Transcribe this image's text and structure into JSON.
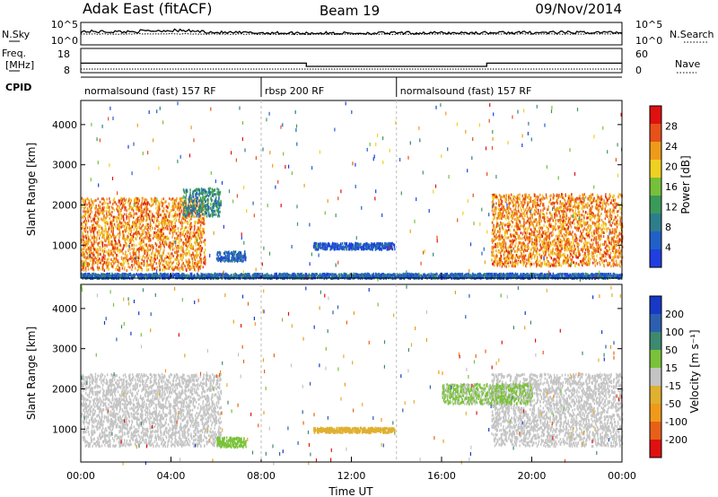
{
  "header": {
    "title": "Adak East (fitACF)",
    "beam": "Beam 19",
    "date": "09/Nov/2014"
  },
  "left_labels": {
    "nsky": "N.Sky",
    "freq_line1": "Freq.",
    "freq_line2": "[MHz]",
    "cpid": "CPID"
  },
  "right_labels": {
    "nsearch": "N.Search",
    "nave": "Nave"
  },
  "noise_axis": {
    "top": "10^5",
    "bottom": "10^0"
  },
  "freq_axis": {
    "ticks": [
      "18",
      "8"
    ]
  },
  "nave_axis": {
    "ticks": [
      "60",
      "0"
    ]
  },
  "cpid_segments": [
    {
      "label": "normalsound (fast) 157 RF",
      "start_hr": 0,
      "end_hr": 8
    },
    {
      "label": "rbsp 200 RF",
      "start_hr": 8,
      "end_hr": 14
    },
    {
      "label": "normalsound (fast) 157 RF",
      "start_hr": 14,
      "end_hr": 24
    }
  ],
  "colors": {
    "power_scale": [
      "#1f3fe0",
      "#2060c8",
      "#2e7d8c",
      "#3a9a5a",
      "#77c03a",
      "#f0d020",
      "#f09a1a",
      "#e8501a",
      "#e01010"
    ],
    "velocity_scale": [
      "#1838c8",
      "#2d5fb0",
      "#3c8a70",
      "#7ac23a",
      "#c4c4c4",
      "#e0b030",
      "#f09a1a",
      "#e86018",
      "#e01010"
    ]
  },
  "chart_data": [
    {
      "type": "line",
      "panel": "noise",
      "x": [
        0,
        2,
        4,
        6,
        8,
        10,
        12,
        14,
        16,
        18,
        20,
        22,
        24
      ],
      "series": [
        {
          "name": "N.Sky",
          "values": [
            3000,
            2500,
            6000,
            1500,
            1200,
            1100,
            1000,
            1100,
            1200,
            1300,
            1500,
            1500,
            1800
          ]
        },
        {
          "name": "N.Search",
          "values": [
            600,
            600,
            650,
            550,
            500,
            500,
            500,
            500,
            550,
            550,
            600,
            600,
            650
          ]
        }
      ],
      "ylim": [
        1,
        100000
      ],
      "yscale": "log"
    },
    {
      "type": "line",
      "panel": "frequency",
      "ylabel": "Freq. [MHz]",
      "x": [
        0,
        10,
        10,
        18,
        18,
        24
      ],
      "series": [
        {
          "name": "Freq",
          "values": [
            12,
            12,
            10.5,
            10.5,
            12,
            12
          ]
        },
        {
          "name": "Nave",
          "values": [
            3,
            3,
            3,
            3,
            3,
            3
          ]
        }
      ],
      "ylim": [
        8,
        18
      ]
    },
    {
      "type": "heatmap",
      "panel": "power",
      "ylabel": "Slant Range [km]",
      "colorbar_label": "Power [dB]",
      "colorbar_ticks": [
        "28",
        "24",
        "20",
        "16",
        "12",
        "8",
        "4"
      ],
      "colorbar_range": [
        0,
        32
      ],
      "yticks": [
        "1000",
        "2000",
        "3000",
        "4000"
      ],
      "ylim": [
        180,
        4600
      ],
      "xlim": [
        0,
        24
      ],
      "regions": [
        {
          "hr_start": 0,
          "hr_end": 5.5,
          "range_center": 1300,
          "range_spread": 900,
          "value": 24
        },
        {
          "hr_start": 4.5,
          "hr_end": 6.2,
          "range_center": 2100,
          "range_spread": 350,
          "value": 10
        },
        {
          "hr_start": 6.0,
          "hr_end": 7.3,
          "range_center": 750,
          "range_spread": 120,
          "value": 6
        },
        {
          "hr_start": 10.3,
          "hr_end": 13.9,
          "range_center": 1000,
          "range_spread": 80,
          "value": 4
        },
        {
          "hr_start": 18.2,
          "hr_end": 24,
          "range_center": 1400,
          "range_spread": 900,
          "value": 24
        },
        {
          "hr_start": 0,
          "hr_end": 24,
          "range_center": 260,
          "range_spread": 60,
          "value": 6
        }
      ]
    },
    {
      "type": "heatmap",
      "panel": "velocity",
      "ylabel": "Slant Range [km]",
      "colorbar_label": "Velocity [m s⁻¹]",
      "colorbar_ticks": [
        "200",
        "100",
        "50",
        "15",
        "-15",
        "-50",
        "-100",
        "-200"
      ],
      "colorbar_range": [
        -250,
        250
      ],
      "yticks": [
        "1000",
        "2000",
        "3000",
        "4000"
      ],
      "ylim": [
        180,
        4600
      ],
      "xlim": [
        0,
        24
      ],
      "xlabel": "Time UT",
      "xticks": [
        "00:00",
        "04:00",
        "08:00",
        "12:00",
        "16:00",
        "20:00",
        "00:00"
      ],
      "regions": [
        {
          "hr_start": 0,
          "hr_end": 6.2,
          "range_center": 1500,
          "range_spread": 900,
          "value": 0
        },
        {
          "hr_start": 6.0,
          "hr_end": 7.3,
          "range_center": 700,
          "range_spread": 120,
          "value": 40
        },
        {
          "hr_start": 10.3,
          "hr_end": 13.9,
          "range_center": 1000,
          "range_spread": 60,
          "value": -40
        },
        {
          "hr_start": 18.2,
          "hr_end": 24,
          "range_center": 1500,
          "range_spread": 900,
          "value": 0
        },
        {
          "hr_start": 16,
          "hr_end": 20,
          "range_center": 1900,
          "range_spread": 250,
          "value": 30
        }
      ]
    }
  ]
}
